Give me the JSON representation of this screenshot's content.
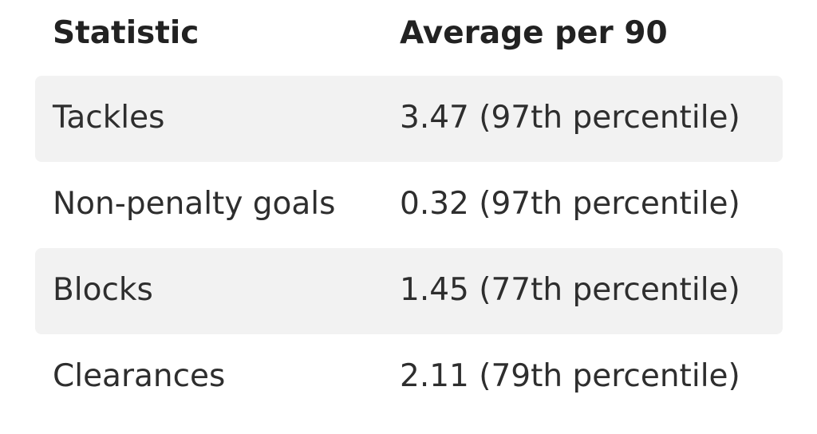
{
  "table": {
    "headers": [
      "Statistic",
      "Average per 90"
    ],
    "rows": [
      {
        "statistic": "Tackles",
        "value": "3.47 (97th percentile)"
      },
      {
        "statistic": "Non-penalty goals",
        "value": "0.32 (97th percentile)"
      },
      {
        "statistic": "Blocks",
        "value": "1.45 (77th percentile)"
      },
      {
        "statistic": "Clearances",
        "value": "2.11 (79th percentile)"
      }
    ],
    "row_background_shaded": "#f2f2f2"
  }
}
